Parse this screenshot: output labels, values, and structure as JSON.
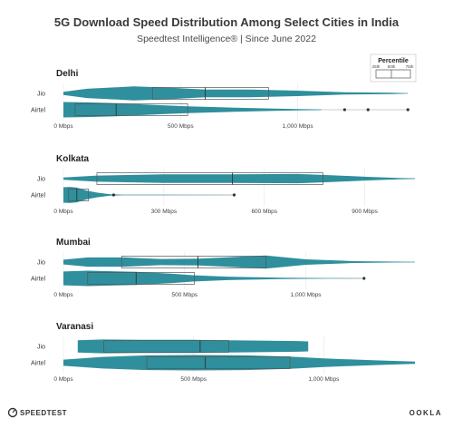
{
  "title": "5G Download Speed Distribution Among Select Cities in India",
  "subtitle": "Speedtest Intelligence® | Since June 2022",
  "legend": {
    "title": "Percentile",
    "labels": [
      "25th",
      "50th",
      "75th"
    ]
  },
  "footer": {
    "left": "SPEEDTEST",
    "right": "OOKLA"
  },
  "colors": {
    "violin": "#2f8f9d",
    "box_stroke": "#555555",
    "whisker": "#bbbbbb",
    "grid": "#e6e6e6"
  },
  "chart_data": [
    {
      "type": "violin",
      "city": "Delhi",
      "xlim": [
        0,
        1500
      ],
      "ticks": [
        {
          "value": 0,
          "label": "0 Mbps"
        },
        {
          "value": 500,
          "label": "500 Mbps"
        },
        {
          "value": 1000,
          "label": "1,000 Mbps"
        }
      ],
      "series": [
        {
          "name": "Jio",
          "p25": 380,
          "p50": 605,
          "p75": 875,
          "min": 20,
          "max": 1470,
          "density": [
            [
              0,
              0.2
            ],
            [
              100,
              0.6
            ],
            [
              300,
              0.9
            ],
            [
              450,
              0.75
            ],
            [
              605,
              0.5
            ],
            [
              800,
              0.5
            ],
            [
              1000,
              0.35
            ],
            [
              1200,
              0.15
            ],
            [
              1400,
              0.08
            ],
            [
              1470,
              0.03
            ]
          ],
          "outliers": []
        },
        {
          "name": "Airtel",
          "p25": 50,
          "p50": 225,
          "p75": 530,
          "min": 0,
          "max": 1470,
          "density": [
            [
              0,
              1.0
            ],
            [
              100,
              0.95
            ],
            [
              225,
              0.85
            ],
            [
              400,
              0.6
            ],
            [
              530,
              0.45
            ],
            [
              700,
              0.3
            ],
            [
              900,
              0.15
            ],
            [
              1000,
              0.08
            ],
            [
              1100,
              0.05
            ]
          ],
          "outliers": [
            1200,
            1300,
            1470
          ]
        }
      ]
    },
    {
      "type": "violin",
      "city": "Kolkata",
      "xlim": [
        0,
        1050
      ],
      "ticks": [
        {
          "value": 0,
          "label": "0 Mbps"
        },
        {
          "value": 300,
          "label": "300 Mbps"
        },
        {
          "value": 600,
          "label": "600 Mbps"
        },
        {
          "value": 900,
          "label": "900 Mbps"
        }
      ],
      "series": [
        {
          "name": "Jio",
          "p25": 100,
          "p50": 505,
          "p75": 775,
          "min": 10,
          "max": 1050,
          "density": [
            [
              0,
              0.15
            ],
            [
              100,
              0.4
            ],
            [
              300,
              0.55
            ],
            [
              500,
              0.55
            ],
            [
              700,
              0.6
            ],
            [
              800,
              0.45
            ],
            [
              900,
              0.25
            ],
            [
              1000,
              0.1
            ],
            [
              1050,
              0.05
            ]
          ],
          "outliers": []
        },
        {
          "name": "Airtel",
          "p25": 15,
          "p50": 40,
          "p75": 75,
          "min": 0,
          "max": 510,
          "density": [
            [
              0,
              1.0
            ],
            [
              20,
              1.05
            ],
            [
              40,
              0.95
            ],
            [
              70,
              0.55
            ],
            [
              100,
              0.3
            ],
            [
              140,
              0.1
            ],
            [
              180,
              0.04
            ],
            [
              300,
              0.02
            ],
            [
              510,
              0.01
            ]
          ],
          "outliers": [
            150,
            510
          ]
        }
      ]
    },
    {
      "type": "violin",
      "city": "Mumbai",
      "xlim": [
        0,
        1450
      ],
      "ticks": [
        {
          "value": 0,
          "label": "0 Mbps"
        },
        {
          "value": 500,
          "label": "500 Mbps"
        },
        {
          "value": 1000,
          "label": "1,000 Mbps"
        }
      ],
      "series": [
        {
          "name": "Jio",
          "p25": 240,
          "p50": 555,
          "p75": 835,
          "min": 0,
          "max": 1450,
          "density": [
            [
              0,
              0.3
            ],
            [
              100,
              0.6
            ],
            [
              250,
              0.6
            ],
            [
              400,
              0.4
            ],
            [
              555,
              0.45
            ],
            [
              700,
              0.65
            ],
            [
              835,
              0.85
            ],
            [
              1000,
              0.35
            ],
            [
              1200,
              0.12
            ],
            [
              1400,
              0.05
            ],
            [
              1450,
              0.02
            ]
          ],
          "outliers": []
        },
        {
          "name": "Airtel",
          "p25": 100,
          "p50": 300,
          "p75": 540,
          "min": 0,
          "max": 1240,
          "density": [
            [
              0,
              0.9
            ],
            [
              100,
              1.0
            ],
            [
              300,
              0.85
            ],
            [
              450,
              0.6
            ],
            [
              540,
              0.4
            ],
            [
              700,
              0.2
            ],
            [
              900,
              0.08
            ],
            [
              1100,
              0.03
            ],
            [
              1240,
              0.01
            ]
          ],
          "outliers": [
            1240
          ]
        }
      ]
    },
    {
      "type": "violin",
      "city": "Varanasi",
      "xlim": [
        0,
        1350
      ],
      "ticks": [
        {
          "value": 0,
          "label": "0 Mbps"
        },
        {
          "value": 500,
          "label": "500 Mbps"
        },
        {
          "value": 1000,
          "label": "1,000 Mbps"
        }
      ],
      "series": [
        {
          "name": "Jio",
          "p25": 155,
          "p50": 525,
          "p75": 635,
          "min": 55,
          "max": 940,
          "density": [
            [
              55,
              0.8
            ],
            [
              150,
              0.9
            ],
            [
              300,
              0.85
            ],
            [
              500,
              0.85
            ],
            [
              600,
              0.8
            ],
            [
              750,
              0.75
            ],
            [
              900,
              0.7
            ],
            [
              940,
              0.65
            ]
          ],
          "outliers": []
        },
        {
          "name": "Airtel",
          "p25": 320,
          "p50": 545,
          "p75": 870,
          "min": 0,
          "max": 1350,
          "density": [
            [
              0,
              0.4
            ],
            [
              150,
              0.75
            ],
            [
              320,
              0.95
            ],
            [
              500,
              1.0
            ],
            [
              700,
              0.95
            ],
            [
              870,
              0.8
            ],
            [
              1000,
              0.55
            ],
            [
              1200,
              0.3
            ],
            [
              1350,
              0.15
            ]
          ],
          "outliers": []
        }
      ]
    }
  ]
}
